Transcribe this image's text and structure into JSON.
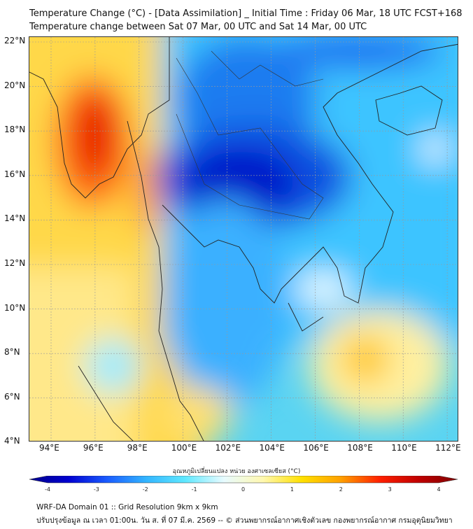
{
  "title": "Temperature Change (°C) - [Data Assimilation] _ Initial Time : Friday 06 Mar, 18 UTC FCST+168",
  "subtitle": "Temperature change between Sat 07 Mar, 00 UTC and Sat 14 Mar, 00 UTC",
  "lat_labels": [
    "22°N",
    "20°N",
    "18°N",
    "16°N",
    "14°N",
    "12°N",
    "10°N",
    "8°N",
    "6°N",
    "4°N"
  ],
  "lon_labels": [
    "94°E",
    "96°E",
    "98°E",
    "100°E",
    "102°E",
    "104°E",
    "106°E",
    "108°E",
    "110°E",
    "112°E"
  ],
  "colorbar": {
    "title": "อุณหภูมิเปลี่ยนแปลง หน่วย องศาเซลเซียส (°C)",
    "ticks": [
      "-4",
      "-3",
      "-2",
      "-1",
      "0",
      "1",
      "2",
      "3",
      "4"
    ],
    "colors": [
      "#00008b",
      "#0000d0",
      "#1a5cff",
      "#33b5ff",
      "#5fe8ff",
      "#e8fbff",
      "#fff8b0",
      "#ffe000",
      "#ffa000",
      "#ff2000",
      "#c00000",
      "#800000"
    ]
  },
  "footer": {
    "line1": "WRF-DA Domain 01 :: Grid Resolution 9km x 9km",
    "line2": "ปรับปรุงข้อมูล ณ เวลา 01:00น. วัน ส. ที่ 07 มี.ค. 2569 -- © ส่วนพยากรณ์อากาศเชิงตัวเลข กองพยากรณ์อากาศ กรมอุตุนิยมวิทยา"
  }
}
